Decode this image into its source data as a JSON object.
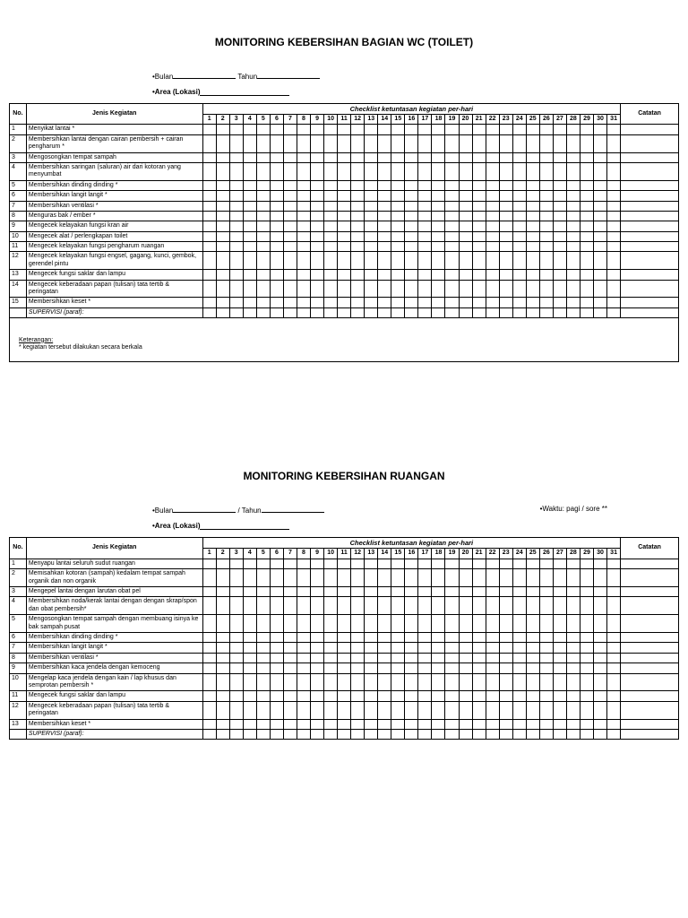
{
  "section1": {
    "title": "MONITORING KEBERSIHAN BAGIAN WC (TOILET)",
    "bulan_label": "•Bulan",
    "tahun_label": "Tahun",
    "area_label": "•Area (Lokasi)",
    "headers": {
      "no": "No.",
      "activity": "Jenis Kegiatan",
      "checklist": "Checklist ketuntasan kegiatan per-hari",
      "notes": "Catatan"
    },
    "days": [
      "1",
      "2",
      "3",
      "4",
      "5",
      "6",
      "7",
      "8",
      "9",
      "10",
      "11",
      "12",
      "13",
      "14",
      "15",
      "16",
      "17",
      "18",
      "19",
      "20",
      "21",
      "22",
      "23",
      "24",
      "25",
      "26",
      "27",
      "28",
      "29",
      "30",
      "31"
    ],
    "rows": [
      {
        "no": "1",
        "text": "Menyikat lantai *"
      },
      {
        "no": "2",
        "text": "Membersihkan lantai dengan cairan pembersih + cairan pengharum *"
      },
      {
        "no": "3",
        "text": "Mengosongkan tempat sampah"
      },
      {
        "no": "4",
        "text": "Membersihkan saringan (saluran) air dari kotoran yang menyumbat"
      },
      {
        "no": "5",
        "text": "Membersihkan dinding dinding *"
      },
      {
        "no": "6",
        "text": "Membersihkan langit langit *"
      },
      {
        "no": "7",
        "text": "Membersihkan ventilasi *"
      },
      {
        "no": "8",
        "text": "Menguras bak / ember *"
      },
      {
        "no": "9",
        "text": "Mengecek kelayakan fungsi kran air"
      },
      {
        "no": "10",
        "text": "Mengecek alat / perlengkapan toilet"
      },
      {
        "no": "11",
        "text": "Mengecek kelayakan fungsi pengharum ruangan"
      },
      {
        "no": "12",
        "text": "Mengecek kelayakan fungsi engsel, gagang, kunci, gembok, gerendel pintu"
      },
      {
        "no": "13",
        "text": "Mengecek fungsi saklar dan lampu"
      },
      {
        "no": "14",
        "text": "Mengecek keberadaan papan (tulisan) tata tertib & peringatan"
      },
      {
        "no": "15",
        "text": "Membersihkan keset *"
      }
    ],
    "supervisi": "SUPERVISI (paraf):",
    "keterangan_label": "Keterangan:",
    "keterangan_text": "* kegiatan tersebut dilakukan secara berkala"
  },
  "section2": {
    "title": "MONITORING KEBERSIHAN RUANGAN",
    "bulan_label": "•Bulan",
    "tahun_sep": "/ Tahun",
    "waktu_label": "•Waktu:  pagi  /  sore **",
    "area_label": "•Area (Lokasi)",
    "headers": {
      "no": "No.",
      "activity": "Jenis Kegiatan",
      "checklist": "Checklist ketuntasan kegiatan per-hari",
      "notes": "Catatan"
    },
    "days": [
      "1",
      "2",
      "3",
      "4",
      "5",
      "6",
      "7",
      "8",
      "9",
      "10",
      "11",
      "12",
      "13",
      "14",
      "15",
      "16",
      "17",
      "18",
      "19",
      "20",
      "21",
      "22",
      "23",
      "24",
      "25",
      "26",
      "27",
      "28",
      "29",
      "30",
      "31"
    ],
    "rows": [
      {
        "no": "1",
        "text": "Menyapu lantai seluruh sudut ruangan"
      },
      {
        "no": "2",
        "text": "Memisahkan kotoran (sampah) kedalam tempat sampah organik dan non organik"
      },
      {
        "no": "3",
        "text": "Mengepel lantai dengan larutan obat pel"
      },
      {
        "no": "4",
        "text": "Membersihkan noda/kerak lantai dengan dengan skrap/spon dan obat pembersih*"
      },
      {
        "no": "5",
        "text": "Mengosongkan tempat sampah dengan membuang isinya ke bak sampah pusat"
      },
      {
        "no": "6",
        "text": "Membersihkan dinding dinding *"
      },
      {
        "no": "7",
        "text": "Membersihkan langit langit *"
      },
      {
        "no": "8",
        "text": "Membersihkan ventilasi *"
      },
      {
        "no": "9",
        "text": "Membersihkan kaca jendela dengan kemoceng"
      },
      {
        "no": "10",
        "text": "Mengelap kaca jendela dengan kain / lap khusus dan semprotan pembersih *"
      },
      {
        "no": "11",
        "text": "Mengecek fungsi saklar dan lampu"
      },
      {
        "no": "12",
        "text": "Mengecek keberadaan papan (tulisan) tata tertib & peringatan"
      },
      {
        "no": "13",
        "text": "Membersihkan keset *"
      }
    ],
    "supervisi": "SUPERVISI (paraf):"
  }
}
